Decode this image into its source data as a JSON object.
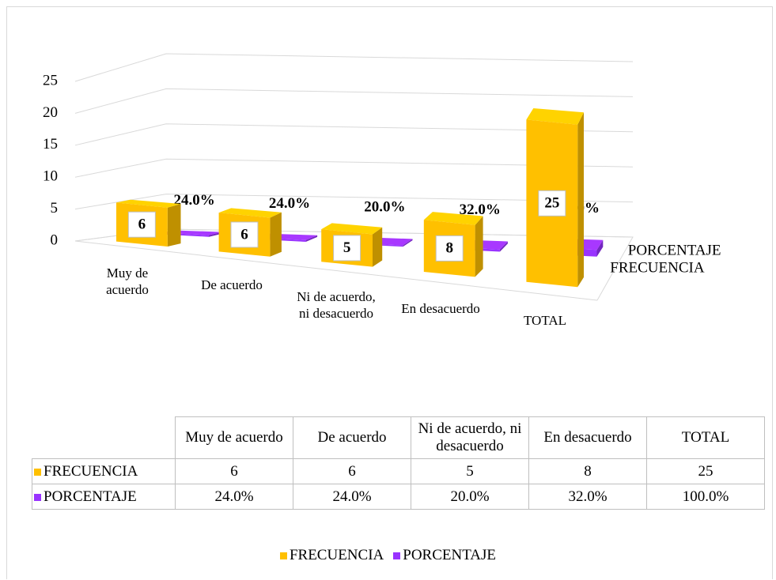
{
  "chart_data": {
    "type": "bar3d",
    "categories": [
      "Muy de acuerdo",
      "De acuerdo",
      "Ni de acuerdo, ni desacuerdo",
      "En desacuerdo",
      "TOTAL"
    ],
    "series": [
      {
        "name": "FRECUENCIA",
        "color": "#ffc000",
        "values": [
          6,
          6,
          5,
          8,
          25
        ]
      },
      {
        "name": "PORCENTAJE",
        "color": "#9933ff",
        "values": [
          0.24,
          0.24,
          0.2,
          0.32,
          1.0
        ],
        "value_labels": [
          "24.0%",
          "24.0%",
          "20.0%",
          "32.0%",
          "100.0%"
        ]
      }
    ],
    "ylim": [
      0,
      25
    ],
    "yticks": [
      0,
      5,
      10,
      15,
      20,
      25
    ],
    "grid": true,
    "data_table": true,
    "legend": "bottom"
  }
}
